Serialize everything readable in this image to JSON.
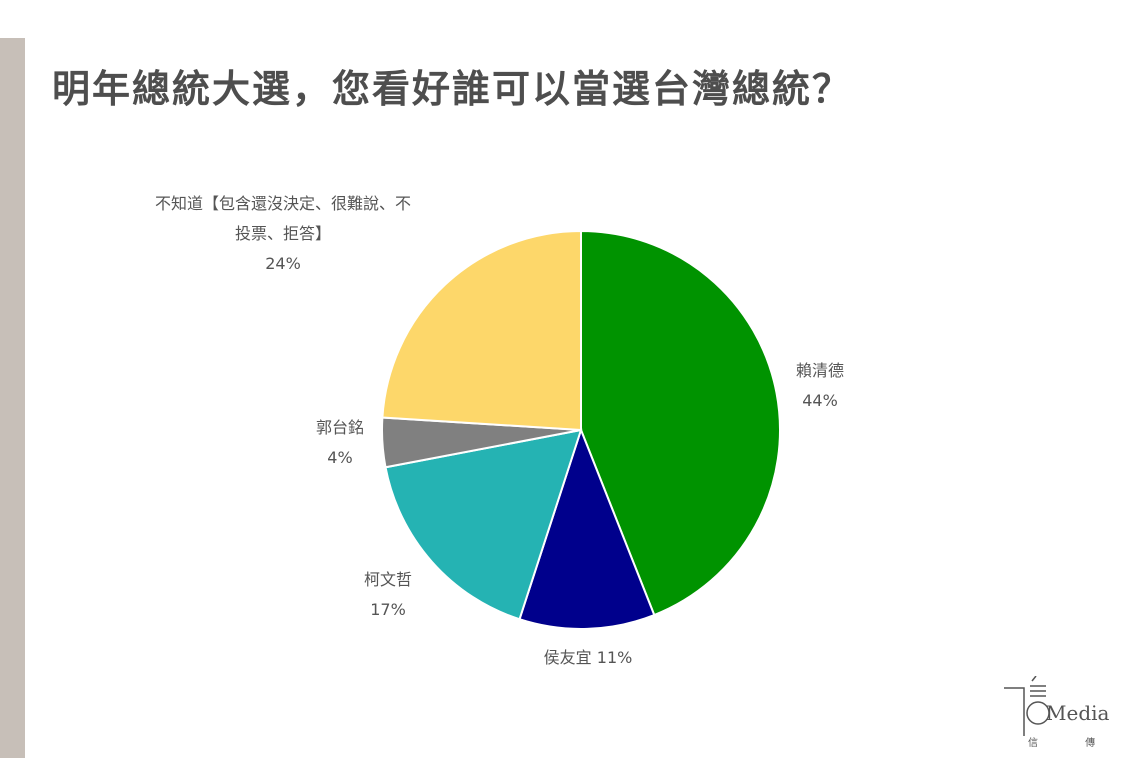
{
  "title": "明年總統大選，您看好誰可以當選台灣總統？",
  "chart_data": {
    "type": "pie",
    "title": "明年總統大選，您看好誰可以當選台灣總統？",
    "slices": [
      {
        "name": "賴清德",
        "value": 44,
        "label": "44%",
        "color": "#009300"
      },
      {
        "name": "侯友宜",
        "value": 11,
        "label": "11%",
        "color": "#00008c"
      },
      {
        "name": "柯文哲",
        "value": 17,
        "label": "17%",
        "color": "#25b3b3"
      },
      {
        "name": "郭台銘",
        "value": 4,
        "label": "4%",
        "color": "#808080"
      },
      {
        "name": "不知道【包含還沒決定、很難說、不投票、拒答】",
        "value": 24,
        "label": "24%",
        "color": "#fdd76a"
      }
    ],
    "label_lines": {
      "s0": [
        "賴清德",
        "44%"
      ],
      "s1": [
        "侯友宜 11%"
      ],
      "s2": [
        "柯文哲",
        "17%"
      ],
      "s3": [
        "郭台銘",
        "4%"
      ],
      "s4": [
        "不知道【包含還沒決定、很難說、不",
        "投票、拒答】",
        "24%"
      ]
    }
  },
  "logo": {
    "text": "Media",
    "subtext": "信 傳 媒"
  }
}
